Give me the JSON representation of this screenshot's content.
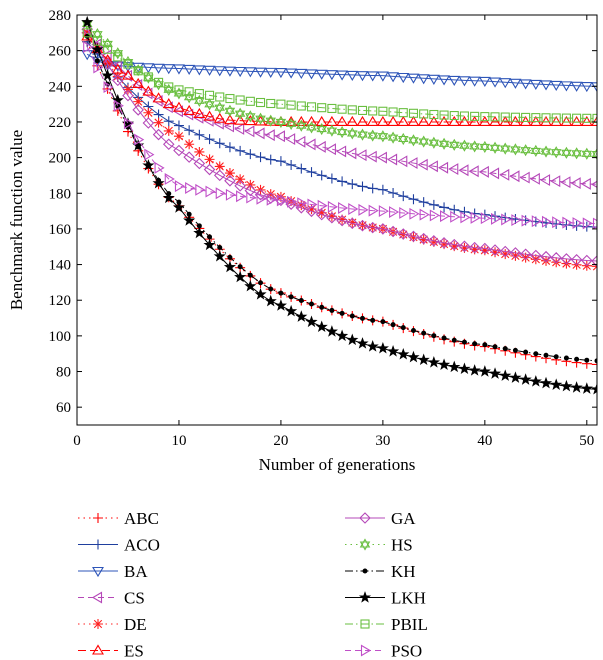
{
  "chart_data": {
    "type": "line",
    "title": "",
    "xlabel": "Number of generations",
    "ylabel": "Benchmark function value",
    "xlim": [
      0,
      51
    ],
    "ylim": [
      50,
      280
    ],
    "xticks": [
      0,
      10,
      20,
      30,
      40,
      50
    ],
    "yticks": [
      60,
      80,
      100,
      120,
      140,
      160,
      180,
      200,
      220,
      240,
      260,
      280
    ],
    "x": [
      1,
      51
    ],
    "grid": false,
    "legend_position": "below-plot",
    "series": [
      {
        "name": "ABC",
        "color": "#ff0000",
        "marker": "plus",
        "dash": "1.5,4",
        "start": 265,
        "end": 84,
        "rate": 0.064,
        "note_points": [
          [
            10,
            173
          ],
          [
            20,
            124
          ],
          [
            30,
            108
          ],
          [
            40,
            94
          ],
          [
            51,
            84
          ]
        ]
      },
      {
        "name": "ACO",
        "color": "#1f3f9e",
        "marker": "plus",
        "dash": "",
        "start": 265,
        "end": 161,
        "rate": 0.055,
        "note_points": [
          [
            10,
            218
          ],
          [
            20,
            198
          ],
          [
            30,
            182
          ],
          [
            40,
            168
          ],
          [
            51,
            161
          ]
        ]
      },
      {
        "name": "BA",
        "color": "#2e55b8",
        "marker": "triangle-down",
        "dash": "",
        "start": 258,
        "end": 240,
        "rate": 0.0,
        "note_points": [
          [
            3,
            252
          ],
          [
            10,
            250
          ],
          [
            20,
            248
          ],
          [
            30,
            246
          ],
          [
            40,
            243
          ],
          [
            51,
            240
          ]
        ]
      },
      {
        "name": "CS",
        "color": "#b548b8",
        "marker": "triangle-left",
        "dash": "6,4",
        "start": 270,
        "end": 185,
        "rate": 0.06,
        "note_points": [
          [
            10,
            226
          ],
          [
            20,
            212
          ],
          [
            30,
            200
          ],
          [
            40,
            192
          ],
          [
            51,
            185
          ]
        ]
      },
      {
        "name": "DE",
        "color": "#ff2020",
        "marker": "asterisk",
        "dash": "1.5,4",
        "start": 270,
        "end": 139,
        "rate": 0.07,
        "note_points": [
          [
            10,
            212
          ],
          [
            20,
            178
          ],
          [
            30,
            160
          ],
          [
            40,
            148
          ],
          [
            51,
            139
          ]
        ]
      },
      {
        "name": "ES",
        "color": "#ff0000",
        "marker": "triangle-up",
        "dash": "8,4",
        "start": 268,
        "end": 220,
        "rate": 0.18,
        "note_points": [
          [
            5,
            246
          ],
          [
            10,
            228
          ],
          [
            15,
            221
          ],
          [
            20,
            220
          ],
          [
            51,
            220
          ]
        ]
      },
      {
        "name": "GA",
        "color": "#b548b8",
        "marker": "diamond",
        "dash": "",
        "start": 272,
        "end": 142,
        "rate": 0.07,
        "note_points": [
          [
            10,
            204
          ],
          [
            20,
            176
          ],
          [
            30,
            160
          ],
          [
            40,
            149
          ],
          [
            51,
            142
          ]
        ]
      },
      {
        "name": "HS",
        "color": "#6abf40",
        "marker": "hexagram",
        "dash": "1.5,4",
        "start": 275,
        "end": 202,
        "rate": 0.065,
        "note_points": [
          [
            10,
            236
          ],
          [
            20,
            220
          ],
          [
            30,
            212
          ],
          [
            40,
            206
          ],
          [
            51,
            202
          ]
        ]
      },
      {
        "name": "KH",
        "color": "#000000",
        "marker": "dot",
        "dash": "8,3,1.5,3",
        "start": 268,
        "end": 86,
        "rate": 0.064,
        "note_points": [
          [
            10,
            175
          ],
          [
            20,
            124
          ],
          [
            30,
            108
          ],
          [
            40,
            95
          ],
          [
            51,
            86
          ]
        ]
      },
      {
        "name": "LKH",
        "color": "#000000",
        "marker": "star",
        "dash": "",
        "start": 276,
        "end": 70,
        "rate": 0.11,
        "note_points": [
          [
            10,
            172
          ],
          [
            20,
            117
          ],
          [
            30,
            93
          ],
          [
            40,
            80
          ],
          [
            51,
            70
          ]
        ]
      },
      {
        "name": "PBIL",
        "color": "#6abf40",
        "marker": "square",
        "dash": "8,3,1.5,3",
        "start": 270,
        "end": 222,
        "rate": 0.1,
        "note_points": [
          [
            10,
            238
          ],
          [
            20,
            230
          ],
          [
            30,
            226
          ],
          [
            40,
            223
          ],
          [
            51,
            222
          ]
        ]
      },
      {
        "name": "PSO",
        "color": "#c050c8",
        "marker": "triangle-right",
        "dash": "6,4",
        "start": 262,
        "end": 163,
        "rate": 0.2,
        "note_points": [
          [
            10,
            184
          ],
          [
            20,
            176
          ],
          [
            30,
            170
          ],
          [
            40,
            166
          ],
          [
            51,
            163
          ]
        ]
      }
    ]
  }
}
